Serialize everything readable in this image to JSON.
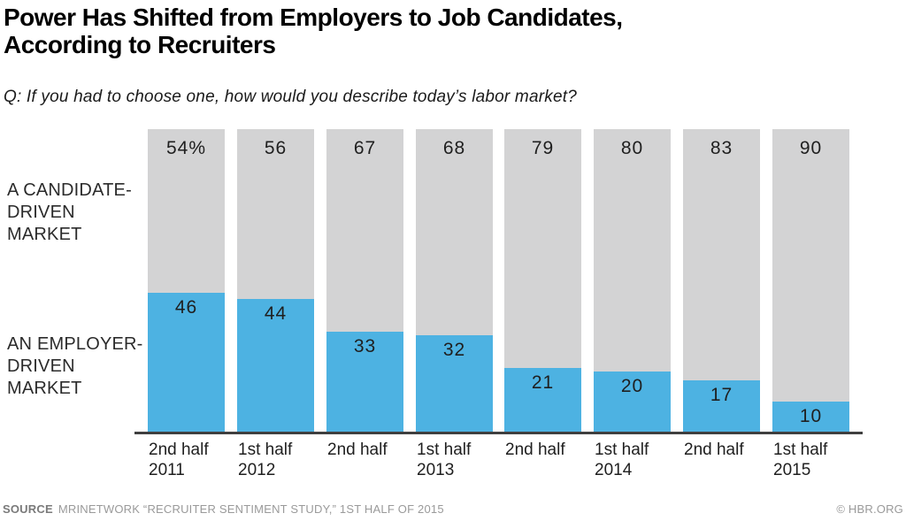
{
  "header": {
    "title_line1": "Power Has Shifted from Employers to Job Candidates,",
    "title_line2": "According to Recruiters",
    "subtitle": "Q: If you had to choose one, how would you describe today’s labor market?"
  },
  "y_labels": {
    "candidate": "A CANDIDATE-\nDRIVEN\nMARKET",
    "employer": "AN EMPLOYER-\nDRIVEN\nMARKET"
  },
  "colors": {
    "bar_gray": "#d3d3d4",
    "bar_blue": "#4db2e2",
    "axis": "#3f3f3f"
  },
  "footer": {
    "source_label": "SOURCE",
    "source_text": "MRINETWORK “RECRUITER SENTIMENT STUDY,” 1ST HALF OF 2015",
    "credit": "© HBR.ORG"
  },
  "chart_data": {
    "type": "bar",
    "subtype": "stacked-vertical",
    "categories": [
      "2nd half\n2011",
      "1st half\n2012",
      "2nd half",
      "1st half\n2013",
      "2nd half",
      "1st half\n2014",
      "2nd half",
      "1st half\n2015"
    ],
    "series": [
      {
        "name": "A candidate-driven market",
        "color": "#d3d3d4",
        "values": [
          54,
          56,
          67,
          68,
          79,
          80,
          83,
          90
        ],
        "display": [
          "54%",
          "56",
          "67",
          "68",
          "79",
          "80",
          "83",
          "90"
        ]
      },
      {
        "name": "An employer-driven market",
        "color": "#4db2e2",
        "values": [
          46,
          44,
          33,
          32,
          21,
          20,
          17,
          10
        ],
        "display": [
          "46",
          "44",
          "33",
          "32",
          "21",
          "20",
          "17",
          "10"
        ]
      }
    ],
    "ylim": [
      0,
      100
    ],
    "grid": false,
    "legend_position": "left-axis-labels",
    "title": "Power Has Shifted from Employers to Job Candidates, According to Recruiters",
    "xlabel": "",
    "ylabel": ""
  }
}
